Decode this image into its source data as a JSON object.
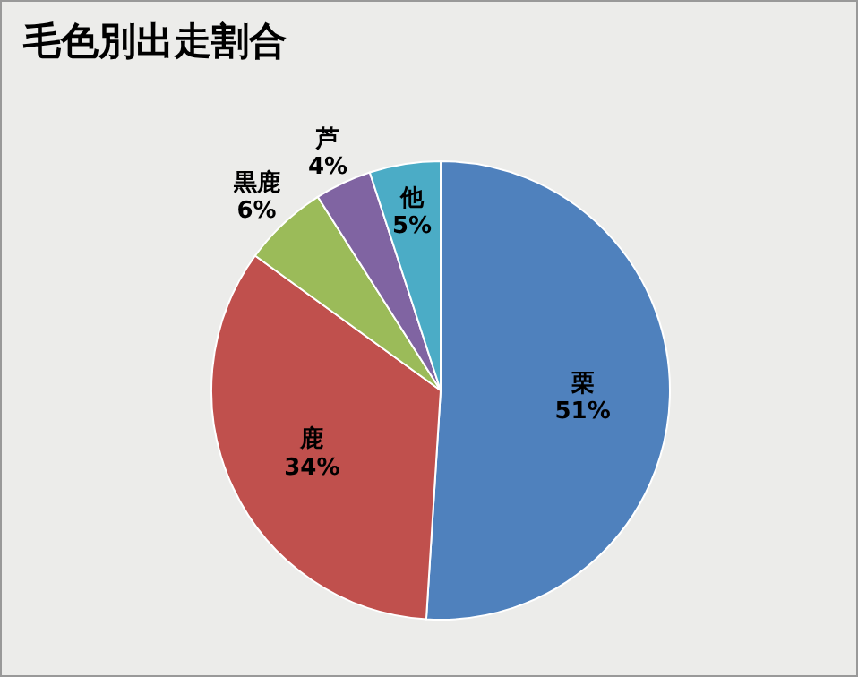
{
  "chart_data": {
    "type": "pie",
    "title": "毛色別出走割合",
    "categories": [
      "栗",
      "鹿",
      "黒鹿",
      "芦",
      "他"
    ],
    "values": [
      51,
      34,
      6,
      4,
      5
    ],
    "colors": [
      "#4f81bd",
      "#c0504d",
      "#9bbb59",
      "#8064a2",
      "#4bacc6"
    ],
    "value_labels": [
      "51%",
      "34%",
      "6%",
      "4%",
      "5%"
    ]
  }
}
